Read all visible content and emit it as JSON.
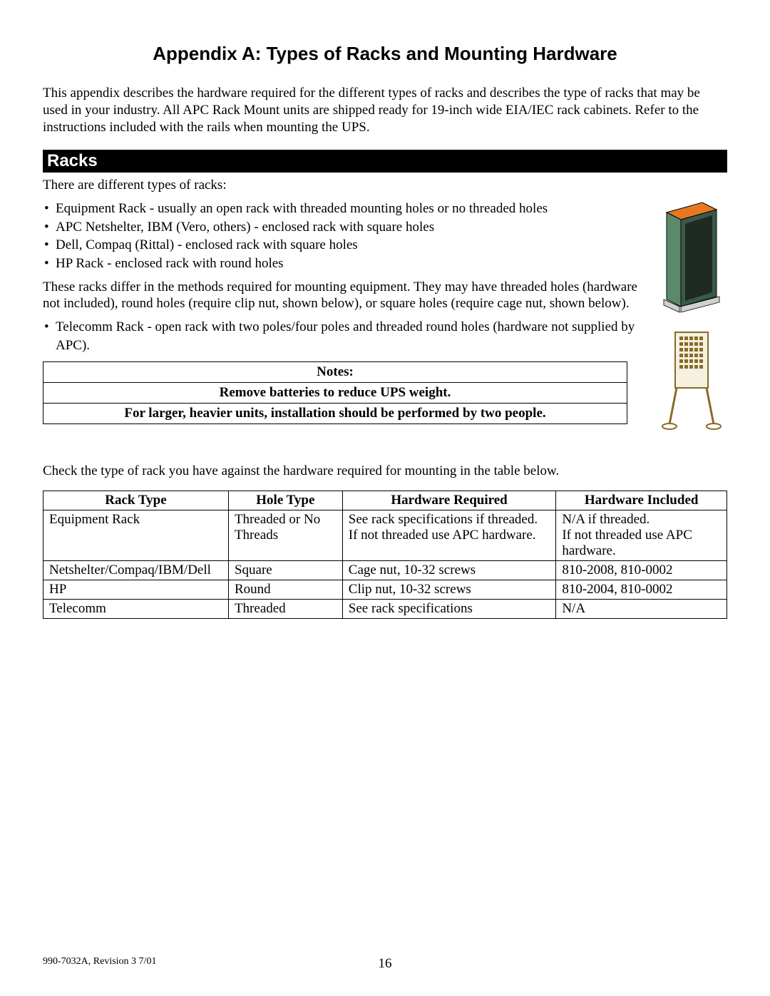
{
  "title": "Appendix A:  Types of Racks and Mounting Hardware",
  "intro": "This appendix describes the hardware required for the different types of racks and describes the type of racks that may be used in your industry.  All APC Rack Mount units are shipped ready for 19-inch wide EIA/IEC rack cabinets.  Refer to the instructions included with the rails when mounting the UPS.",
  "section_header": "Racks",
  "racks_intro": "There are different types of racks:",
  "bullets1": [
    "Equipment Rack - usually an open rack with threaded mounting holes or no threaded holes",
    "APC Netshelter, IBM (Vero, others) - enclosed rack with square holes",
    "Dell, Compaq (Rittal) - enclosed rack with square holes",
    "HP Rack - enclosed rack with round holes"
  ],
  "methods_para": "These racks differ in the methods required for mounting equipment.  They may have threaded holes (hardware not included), round holes (require clip nut, shown below), or square holes (require cage nut, shown below).",
  "bullets2": [
    "Telecomm Rack - open rack with two poles/four poles and threaded round holes (hardware not supplied by APC)."
  ],
  "notes": {
    "header": "Notes:",
    "row1": "Remove batteries to reduce UPS weight.",
    "row2": "For larger, heavier units, installation should be performed by two people."
  },
  "check_text": "Check the type of rack you have against the hardware required for mounting in the table below.",
  "hw_table": {
    "headers": [
      "Rack Type",
      "Hole Type",
      "Hardware Required",
      "Hardware Included"
    ],
    "rows": [
      [
        "Equipment Rack",
        "Threaded or No Threads",
        "See rack specifications if threaded.  If not threaded use APC hardware.",
        "N/A if threaded.\nIf not threaded use APC hardware."
      ],
      [
        "Netshelter/Compaq/IBM/Dell",
        "Square",
        "Cage nut, 10-32 screws",
        "810-2008, 810-0002"
      ],
      [
        "HP",
        "Round",
        "Clip nut, 10-32 screws",
        "810-2004, 810-0002"
      ],
      [
        "Telecomm",
        "Threaded",
        "See rack specifications",
        "N/A"
      ]
    ],
    "col_widths": [
      "260px",
      "160px",
      "300px",
      "240px"
    ]
  },
  "footer_left": "990-7032A, Revision 3  7/01",
  "footer_page": "16",
  "colors": {
    "cabinet_top": "#e87722",
    "cabinet_body": "#5b8a6a",
    "cabinet_dark": "#2a3a30",
    "cabinet_feet": "#d0d0d0",
    "telecom_fill": "#f5f0e0",
    "telecom_stroke": "#8a6a2a"
  }
}
